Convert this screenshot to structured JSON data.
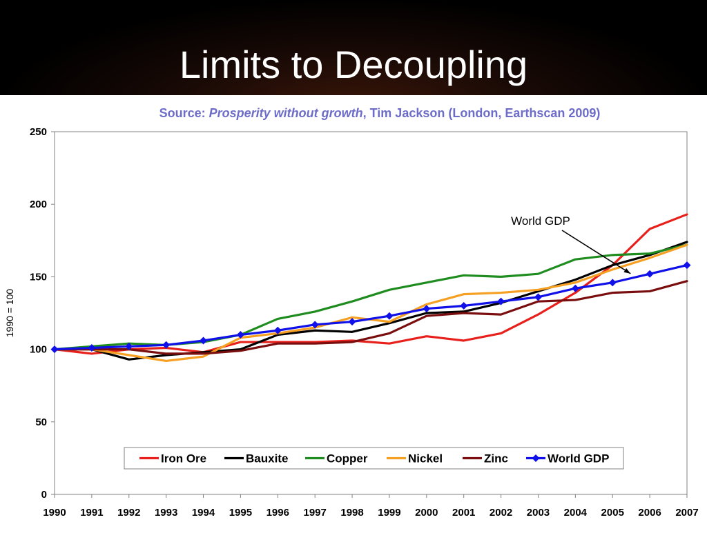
{
  "slide": {
    "title": "Limits to Decoupling",
    "source_prefix": "Source: ",
    "source_title": "Prosperity without growth",
    "source_suffix": ", Tim Jackson (London, Earthscan 2009)"
  },
  "chart_data": {
    "type": "line",
    "title": "",
    "xlabel": "",
    "ylabel": "1990 = 100",
    "x": [
      "1990",
      "1991",
      "1992",
      "1993",
      "1994",
      "1995",
      "1996",
      "1997",
      "1998",
      "1999",
      "2000",
      "2001",
      "2002",
      "2003",
      "2004",
      "2005",
      "2006",
      "2007"
    ],
    "ylim": [
      0,
      250
    ],
    "yticks": [
      0,
      50,
      100,
      150,
      200,
      250
    ],
    "grid": false,
    "legend_position": "bottom",
    "series": [
      {
        "name": "Iron Ore",
        "color": "#e8201c",
        "marker": "none",
        "values": [
          100,
          97,
          100,
          101,
          98,
          105,
          105,
          105,
          106,
          104,
          109,
          106,
          111,
          124,
          139,
          158,
          183,
          193
        ]
      },
      {
        "name": "Bauxite",
        "color": "#000000",
        "marker": "none",
        "values": [
          100,
          100,
          93,
          96,
          98,
          100,
          110,
          113,
          112,
          118,
          125,
          126,
          132,
          140,
          148,
          158,
          165,
          174
        ]
      },
      {
        "name": "Copper",
        "color": "#1f8c1f",
        "marker": "none",
        "values": [
          100,
          102,
          104,
          103,
          105,
          110,
          121,
          126,
          133,
          141,
          146,
          151,
          150,
          152,
          162,
          165,
          166,
          172
        ]
      },
      {
        "name": "Nickel",
        "color": "#f5a023",
        "marker": "none",
        "values": [
          100,
          100,
          96,
          92,
          95,
          108,
          111,
          115,
          122,
          119,
          131,
          138,
          139,
          141,
          146,
          155,
          163,
          172
        ]
      },
      {
        "name": "Zinc",
        "color": "#7a0e0e",
        "marker": "none",
        "values": [
          100,
          100,
          100,
          97,
          97,
          99,
          104,
          104,
          105,
          111,
          123,
          125,
          124,
          133,
          134,
          139,
          140,
          147
        ]
      },
      {
        "name": "World GDP",
        "color": "#1010e8",
        "marker": "diamond",
        "values": [
          100,
          101,
          102,
          103,
          106,
          110,
          113,
          117,
          119,
          123,
          128,
          130,
          133,
          136,
          142,
          146,
          152,
          158
        ]
      }
    ],
    "annotations": [
      {
        "text": "World GDP",
        "points_to_series": "World GDP",
        "points_to_x": "2005"
      }
    ]
  }
}
